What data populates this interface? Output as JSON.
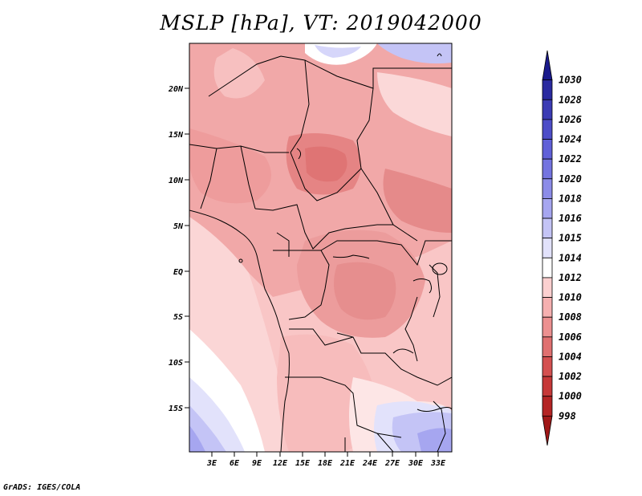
{
  "title": "MSLP [hPa], VT: 2019042000",
  "credit": "GrADS: IGES/COLA",
  "map": {
    "variable": "MSLP",
    "units": "hPa",
    "valid_time": "2019042000",
    "lat_labels": [
      "20N",
      "15N",
      "10N",
      "5N",
      "EQ",
      "5S",
      "10S",
      "15S"
    ],
    "lon_labels": [
      "3E",
      "6E",
      "9E",
      "12E",
      "15E",
      "18E",
      "21E",
      "24E",
      "27E",
      "30E",
      "33E"
    ]
  },
  "colorbar": {
    "labels": [
      "1030",
      "1028",
      "1026",
      "1024",
      "1022",
      "1020",
      "1018",
      "1016",
      "1015",
      "1014",
      "1012",
      "1010",
      "1008",
      "1006",
      "1004",
      "1002",
      "1000",
      "998"
    ],
    "colors": [
      "#1a1a8c",
      "#2a2aa0",
      "#3b3bb4",
      "#4d4dc8",
      "#6060d8",
      "#7474e0",
      "#8c8ce8",
      "#a6a6f0",
      "#c4c4f6",
      "#e2e2fb",
      "#ffffff",
      "#fcd0d0",
      "#f6b0b0",
      "#ec9090",
      "#e07070",
      "#d45050",
      "#c63838",
      "#b42424",
      "#a01818"
    ]
  }
}
